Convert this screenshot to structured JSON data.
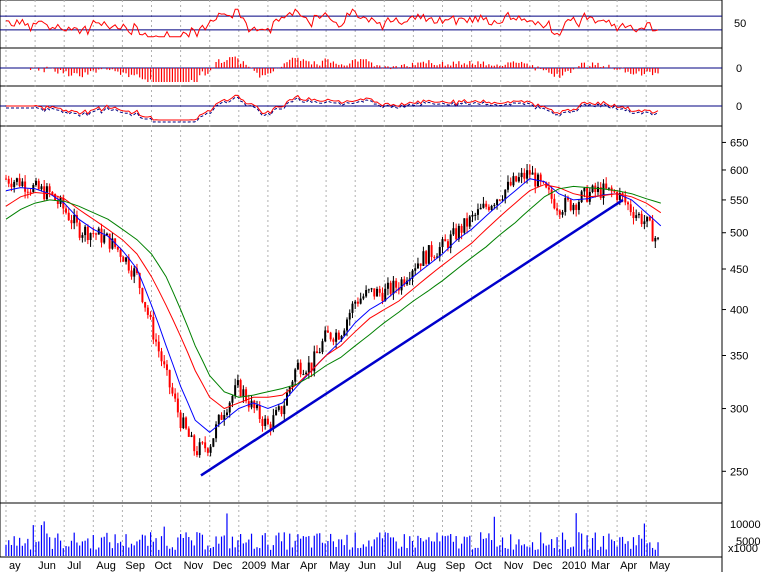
{
  "chart_data": {
    "type": "line",
    "subtype": "candlestick-with-indicators",
    "title": "",
    "colors": {
      "up": "#000000",
      "down": "#ff0000",
      "ma_fast": "#0000ff",
      "ma_mid": "#ff0000",
      "ma_slow": "#008000",
      "trendline": "#0000cc",
      "volume": "#0000ff",
      "indicator": "#ff0000",
      "hline": "#000080",
      "grid": "#b0b0b0"
    },
    "x_labels": [
      "ay",
      "Jun",
      "Jul",
      "Aug",
      "Sep",
      "Oct",
      "Nov",
      "Dec",
      "2009",
      "Mar",
      "Apr",
      "May",
      "Jun",
      "Jul",
      "Aug",
      "Sep",
      "Oct",
      "Nov",
      "Dec",
      "2010",
      "Mar",
      "Apr",
      "May"
    ],
    "panels": [
      {
        "name": "oscillator",
        "y_ticks": [
          "50"
        ],
        "hlines_approx": [
          65,
          35
        ]
      },
      {
        "name": "histogram",
        "y_ticks": [
          "0"
        ]
      },
      {
        "name": "momentum",
        "y_ticks": [
          "0"
        ]
      },
      {
        "name": "price",
        "scale": "log",
        "ylim": [
          230,
          670
        ],
        "y_ticks": [
          "650",
          "600",
          "550",
          "500",
          "450",
          "400",
          "350",
          "300",
          "250"
        ]
      },
      {
        "name": "volume",
        "y_ticks": [
          "10000",
          "5000"
        ],
        "unit_label": "x1000"
      }
    ],
    "price_path": {
      "month_index": [
        0,
        0.5,
        1,
        1.5,
        2,
        2.5,
        3,
        3.5,
        4,
        4.5,
        5,
        5.5,
        6,
        6.5,
        7,
        7.5,
        8,
        8.5,
        9,
        9.5,
        10,
        10.5,
        11,
        11.5,
        12,
        12.5,
        13,
        13.5,
        14,
        14.5,
        15,
        15.5,
        16,
        16.5,
        17,
        17.5,
        18,
        18.5,
        19,
        19.5,
        20,
        20.5,
        21,
        21.5,
        22,
        22.5
      ],
      "close": [
        585,
        580,
        568,
        560,
        535,
        505,
        500,
        490,
        470,
        440,
        380,
        330,
        290,
        265,
        270,
        300,
        320,
        300,
        285,
        300,
        340,
        340,
        370,
        375,
        410,
        420,
        420,
        430,
        455,
        470,
        480,
        500,
        520,
        540,
        560,
        580,
        595,
        565,
        540,
        545,
        560,
        565,
        560,
        535,
        515,
        480
      ]
    },
    "moving_averages": [
      {
        "name": "ma_fast",
        "values": [
          565,
          570,
          568,
          560,
          545,
          520,
          505,
          495,
          475,
          450,
          405,
          360,
          320,
          290,
          280,
          290,
          300,
          305,
          300,
          305,
          320,
          335,
          350,
          365,
          385,
          400,
          410,
          425,
          440,
          455,
          470,
          490,
          505,
          525,
          545,
          565,
          585,
          580,
          560,
          550,
          552,
          558,
          560,
          550,
          530,
          510
        ]
      },
      {
        "name": "ma_mid",
        "values": [
          540,
          555,
          562,
          560,
          552,
          535,
          520,
          505,
          490,
          470,
          440,
          405,
          370,
          335,
          310,
          300,
          305,
          310,
          310,
          312,
          322,
          335,
          350,
          360,
          375,
          390,
          400,
          410,
          425,
          440,
          455,
          470,
          485,
          505,
          525,
          545,
          565,
          575,
          570,
          560,
          555,
          557,
          560,
          555,
          545,
          530
        ]
      },
      {
        "name": "ma_slow",
        "values": [
          520,
          535,
          545,
          550,
          548,
          540,
          530,
          520,
          505,
          490,
          470,
          440,
          400,
          360,
          330,
          315,
          310,
          312,
          315,
          318,
          322,
          330,
          340,
          348,
          360,
          372,
          385,
          397,
          410,
          422,
          435,
          450,
          465,
          480,
          498,
          515,
          535,
          555,
          568,
          572,
          570,
          568,
          565,
          560,
          552,
          545
        ]
      }
    ],
    "trendline": {
      "start": {
        "month": 6.7,
        "price": 247
      },
      "end": {
        "month": 21.2,
        "price": 550
      }
    }
  }
}
